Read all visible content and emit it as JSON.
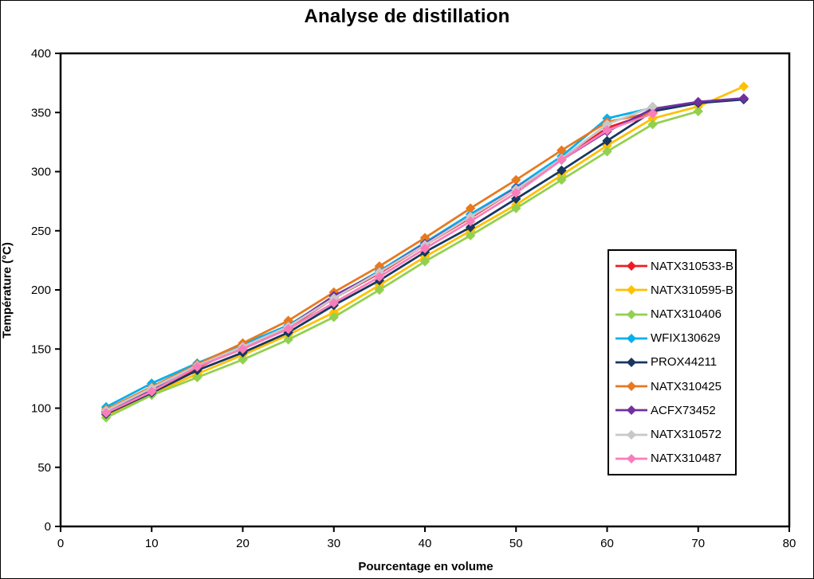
{
  "chart": {
    "title": "Analyse de distillation",
    "xlabel": "Pourcentage en volume",
    "ylabel": "Température (°C)"
  },
  "chart_data": {
    "type": "line",
    "title": "Analyse de distillation",
    "xlabel": "Pourcentage en volume",
    "ylabel": "Température (°C)",
    "xlim": [
      0,
      80
    ],
    "ylim": [
      0,
      400
    ],
    "x_ticks": [
      0,
      10,
      20,
      30,
      40,
      50,
      60,
      70,
      80
    ],
    "y_ticks": [
      0,
      50,
      100,
      150,
      200,
      250,
      300,
      350,
      400
    ],
    "grid": false,
    "legend_position": "middle-right",
    "marker": "diamond",
    "series": [
      {
        "name": "NATX310533-B",
        "color": "#EC1C24",
        "x": [
          5,
          10,
          15,
          20,
          25,
          30,
          35,
          40,
          45,
          50,
          55,
          60,
          65
        ],
        "values": [
          97,
          115,
          134,
          152,
          168,
          193,
          214,
          238,
          261,
          285,
          310,
          337,
          350
        ]
      },
      {
        "name": "NATX310595-B",
        "color": "#FFC000",
        "x": [
          5,
          10,
          15,
          20,
          25,
          30,
          35,
          40,
          45,
          50,
          55,
          60,
          65,
          70,
          75
        ],
        "values": [
          94,
          112,
          129,
          145,
          162,
          181,
          204,
          228,
          250,
          272,
          297,
          322,
          345,
          355,
          372
        ]
      },
      {
        "name": "NATX310406",
        "color": "#92D050",
        "x": [
          5,
          10,
          15,
          20,
          25,
          30,
          35,
          40,
          45,
          50,
          55,
          60,
          65,
          70
        ],
        "values": [
          92,
          111,
          126,
          141,
          158,
          177,
          200,
          224,
          246,
          269,
          293,
          317,
          340,
          351
        ]
      },
      {
        "name": "WFIX130629",
        "color": "#00B0F0",
        "x": [
          5,
          10,
          15,
          20,
          25,
          30,
          35,
          40,
          45,
          50,
          55,
          60,
          65
        ],
        "values": [
          101,
          121,
          138,
          154,
          170,
          194,
          216,
          240,
          264,
          287,
          313,
          345,
          354
        ]
      },
      {
        "name": "PROX44211",
        "color": "#17375E",
        "x": [
          5,
          10,
          15,
          20,
          25,
          30,
          35,
          40,
          45,
          50,
          55,
          60,
          65,
          70,
          75
        ],
        "values": [
          95,
          113,
          132,
          147,
          164,
          187,
          208,
          232,
          253,
          277,
          301,
          326,
          351,
          358,
          361
        ]
      },
      {
        "name": "NATX310425",
        "color": "#E8791E",
        "x": [
          5,
          10,
          15,
          20,
          25,
          30,
          35,
          40,
          45,
          50,
          55,
          60,
          65
        ],
        "values": [
          99,
          118,
          137,
          155,
          174,
          198,
          220,
          244,
          269,
          293,
          318,
          342,
          350
        ]
      },
      {
        "name": "ACFX73452",
        "color": "#7030A0",
        "x": [
          5,
          10,
          15,
          20,
          25,
          30,
          35,
          40,
          45,
          50,
          55,
          60,
          65,
          70,
          75
        ],
        "values": [
          97,
          116,
          135,
          152,
          169,
          195,
          215,
          239,
          262,
          286,
          310,
          334,
          353,
          359,
          362
        ]
      },
      {
        "name": "NATX310572",
        "color": "#C8C8C8",
        "x": [
          5,
          10,
          15,
          20,
          25,
          30,
          35,
          40,
          45,
          50,
          55,
          60,
          65
        ],
        "values": [
          98,
          117,
          136,
          152,
          169,
          193,
          215,
          238,
          262,
          285,
          311,
          340,
          355
        ]
      },
      {
        "name": "NATX310487",
        "color": "#FA7DBB",
        "x": [
          5,
          10,
          15,
          20,
          25,
          30,
          35,
          40,
          45,
          50,
          55,
          60,
          65
        ],
        "values": [
          96,
          114,
          135,
          150,
          167,
          189,
          211,
          235,
          258,
          282,
          310,
          335,
          349
        ]
      }
    ]
  }
}
